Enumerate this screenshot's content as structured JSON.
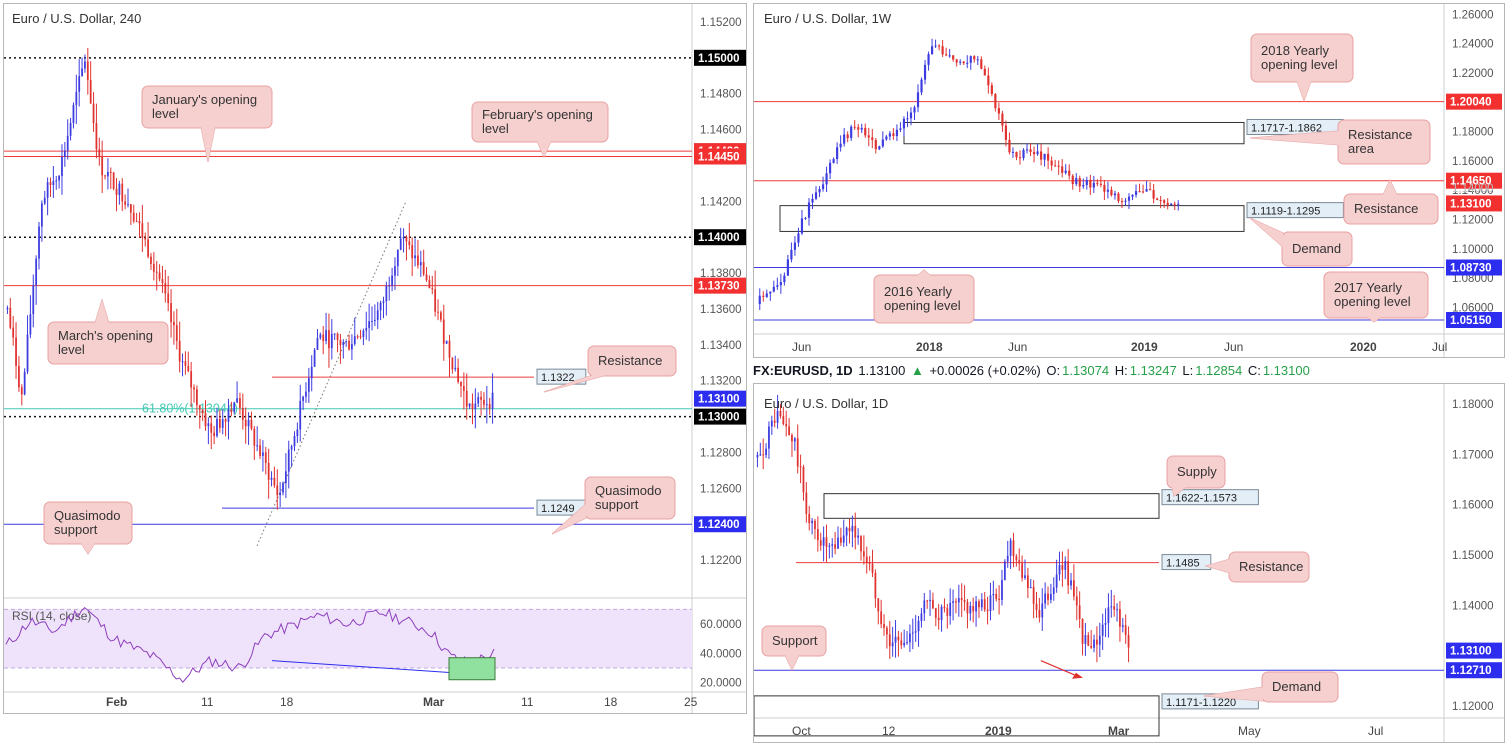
{
  "colors": {
    "bull": "#3c3ce0",
    "bear": "#e0322f",
    "red_level": "#ef3b3b",
    "blue_level": "#3c3ce0",
    "fib": "#42c9b3",
    "callout_fill": "#f6cfcf",
    "callout_stroke": "#e8a1a1",
    "rsi_fill": "#efe3fb",
    "rsi_line": "#8e3fbe",
    "green_box": "#90e0a0"
  },
  "header": {
    "symbol": "FX:EURUSD, 1D",
    "price": "1.13100",
    "change": "+0.00026 (+0.02%)",
    "o_label": "O:",
    "o": "1.13074",
    "h_label": "H:",
    "h": "1.13247",
    "l_label": "L:",
    "l": "1.12854",
    "c_label": "C:",
    "c": "1.13100",
    "up_arrow_icon": "triangle-up-icon"
  },
  "chart_data": [
    {
      "id": "h4",
      "type": "candlestick",
      "title": "Euro / U.S. Dollar, 240",
      "ylim": [
        1.12,
        1.153
      ],
      "y_ticks": [
        "1.15200",
        "1.14800",
        "1.14600",
        "1.14200",
        "1.13800",
        "1.13600",
        "1.13400",
        "1.13200",
        "1.12800",
        "1.12600",
        "1.12200"
      ],
      "x_ticks": [
        "Feb",
        "11",
        "18",
        "Mar",
        "11",
        "18",
        "25"
      ],
      "price_tags": [
        {
          "value": "1.15000",
          "y": 1.15,
          "style": "black"
        },
        {
          "value": "1.14480",
          "y": 1.1448,
          "style": "red"
        },
        {
          "value": "1.14450",
          "y": 1.1445,
          "style": "red"
        },
        {
          "value": "1.14000",
          "y": 1.14,
          "style": "black"
        },
        {
          "value": "1.13730",
          "y": 1.1373,
          "style": "red"
        },
        {
          "value": "1.13100",
          "y": 1.131,
          "style": "blue"
        },
        {
          "value": "1.13000",
          "y": 1.13,
          "style": "black"
        },
        {
          "value": "1.12400",
          "y": 1.124,
          "style": "blue"
        }
      ],
      "level_labels": [
        {
          "text": "1.1322",
          "y": 1.1322
        },
        {
          "text": "1.1249",
          "y": 1.1249
        }
      ],
      "fib_label": "61.80%(1.13044)",
      "fib_value": 1.13044,
      "annotations": [
        {
          "text": "January's opening\nlevel"
        },
        {
          "text": "February's opening\nlevel"
        },
        {
          "text": "March's opening\nlevel"
        },
        {
          "text": "Resistance"
        },
        {
          "text": "Quasimodo\nsupport"
        },
        {
          "text": "Quasimodo\nsupport"
        }
      ],
      "rsi": {
        "label": "RSI (14, close)",
        "ylim": [
          15,
          75
        ],
        "y_ticks": [
          "60.0000",
          "40.0000",
          "20.0000"
        ],
        "band": [
          30,
          70
        ]
      }
    },
    {
      "id": "weekly",
      "type": "candlestick",
      "title": "Euro / U.S. Dollar, 1W",
      "ylim": [
        1.044,
        1.267
      ],
      "y_ticks": [
        "1.26000",
        "1.24000",
        "1.22000",
        "1.18000",
        "1.16000",
        "1.14000",
        "1.12000",
        "1.10000",
        "1.08000",
        "1.06000"
      ],
      "x_ticks": [
        "Jun",
        "2018",
        "Jun",
        "2019",
        "Jun",
        "2020",
        "Jul"
      ],
      "price_tags": [
        {
          "value": "1.20040",
          "y": 1.2004,
          "style": "red"
        },
        {
          "value": "1.14650",
          "y": 1.1465,
          "style": "red"
        },
        {
          "value": "1.13100",
          "y": 1.131,
          "style": "red"
        },
        {
          "value": "1.08730",
          "y": 1.0873,
          "style": "blue"
        },
        {
          "value": "1.05150",
          "y": 1.0515,
          "style": "blue"
        }
      ],
      "zones": [
        {
          "label": "1.1717-1.1862",
          "top": 1.1862,
          "bottom": 1.1717
        },
        {
          "label": "1.1119-1.1295",
          "top": 1.1295,
          "bottom": 1.1119
        }
      ],
      "annotations": [
        {
          "text": "2018 Yearly\nopening level"
        },
        {
          "text": "Resistance\narea"
        },
        {
          "text": "Resistance"
        },
        {
          "text": "Demand"
        },
        {
          "text": "2016 Yearly\nopening level"
        },
        {
          "text": "2017 Yearly\nopening level"
        }
      ]
    },
    {
      "id": "daily",
      "type": "candlestick",
      "title": "Euro / U.S. Dollar, 1D",
      "ylim": [
        1.118,
        1.184
      ],
      "y_ticks": [
        "1.18000",
        "1.17000",
        "1.16000",
        "1.15000",
        "1.14000",
        "1.12000"
      ],
      "x_ticks": [
        "Oct",
        "12",
        "2019",
        "Mar",
        "May",
        "Jul"
      ],
      "price_tags": [
        {
          "value": "1.13100",
          "y": 1.131,
          "style": "blue"
        },
        {
          "value": "1.12710",
          "y": 1.1271,
          "style": "blue"
        }
      ],
      "zones": [
        {
          "label": "1.1622-1.1573",
          "top": 1.1622,
          "bottom": 1.1573
        },
        {
          "label": "1.1485",
          "top": 1.1485,
          "bottom": 1.1485
        },
        {
          "label": "1.1171-1.1220",
          "top": 1.122,
          "bottom": 1.1171
        }
      ],
      "annotations": [
        {
          "text": "Supply"
        },
        {
          "text": "Resistance"
        },
        {
          "text": "Support"
        },
        {
          "text": "Demand"
        }
      ]
    }
  ]
}
